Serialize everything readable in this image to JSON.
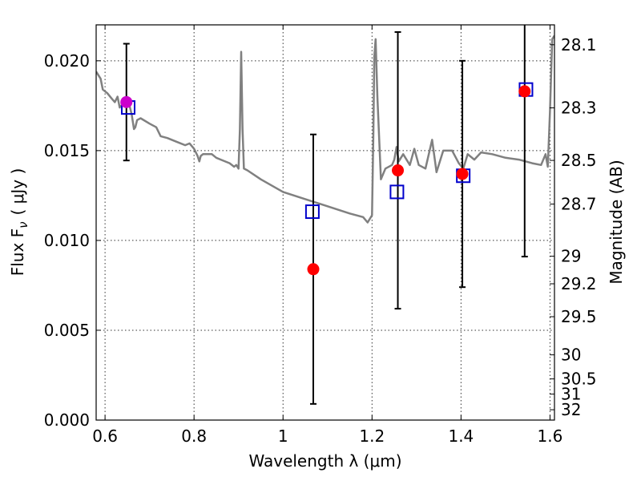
{
  "chart_data": {
    "type": "scatter",
    "xlabel": "Wavelength  λ (μm)",
    "ylabel": "Flux  F",
    "ylabel_sub": "ν",
    "ylabel_unit": "( μJy )",
    "y2label": "Magnitude (AB)",
    "xlim": [
      0.58,
      1.61
    ],
    "ylim": [
      0.0,
      0.022
    ],
    "grid": true,
    "x_ticks": [
      {
        "v": 0.6,
        "label": "0.6"
      },
      {
        "v": 0.8,
        "label": "0.8"
      },
      {
        "v": 1.0,
        "label": "1"
      },
      {
        "v": 1.2,
        "label": "1.2"
      },
      {
        "v": 1.4,
        "label": "1.4"
      },
      {
        "v": 1.6,
        "label": "1.6"
      }
    ],
    "y_ticks": [
      {
        "v": 0.0,
        "label": "0.000"
      },
      {
        "v": 0.005,
        "label": "0.005"
      },
      {
        "v": 0.01,
        "label": "0.010"
      },
      {
        "v": 0.015,
        "label": "0.015"
      },
      {
        "v": 0.02,
        "label": "0.020"
      }
    ],
    "mag_ticks": [
      {
        "mag": 28.1,
        "label": "28.1"
      },
      {
        "mag": 28.3,
        "label": "28.3"
      },
      {
        "mag": 28.5,
        "label": "28.5"
      },
      {
        "mag": 28.7,
        "label": "28.7"
      },
      {
        "mag": 29.0,
        "label": "29"
      },
      {
        "mag": 29.2,
        "label": "29.2"
      },
      {
        "mag": 29.5,
        "label": "29.5"
      },
      {
        "mag": 30.0,
        "label": "30"
      },
      {
        "mag": 30.5,
        "label": "30.5"
      },
      {
        "mag": 31.0,
        "label": "31"
      },
      {
        "mag": 32.0,
        "label": "32"
      }
    ],
    "observed": [
      {
        "x": 0.648,
        "y": 0.0177,
        "err": 0.00325,
        "color": "#cc00cc"
      },
      {
        "x": 1.068,
        "y": 0.0084,
        "err": 0.0075,
        "color": "#ff0000"
      },
      {
        "x": 1.258,
        "y": 0.0139,
        "err": 0.0077,
        "color": "#ff0000"
      },
      {
        "x": 1.403,
        "y": 0.0137,
        "err": 0.0063,
        "color": "#ff0000"
      },
      {
        "x": 1.543,
        "y": 0.0183,
        "err": 0.0092,
        "color": "#ff0000"
      }
    ],
    "model_points": [
      {
        "x": 0.652,
        "y": 0.0174
      },
      {
        "x": 1.066,
        "y": 0.0116
      },
      {
        "x": 1.256,
        "y": 0.0127
      },
      {
        "x": 1.405,
        "y": 0.0136
      },
      {
        "x": 1.546,
        "y": 0.0184
      }
    ],
    "sed_curve": [
      [
        0.58,
        0.0194
      ],
      [
        0.59,
        0.019
      ],
      [
        0.595,
        0.0184
      ],
      [
        0.605,
        0.0182
      ],
      [
        0.615,
        0.0179
      ],
      [
        0.622,
        0.0177
      ],
      [
        0.628,
        0.018
      ],
      [
        0.633,
        0.0174
      ],
      [
        0.64,
        0.0176
      ],
      [
        0.648,
        0.0176
      ],
      [
        0.655,
        0.0175
      ],
      [
        0.66,
        0.017
      ],
      [
        0.665,
        0.0162
      ],
      [
        0.668,
        0.0163
      ],
      [
        0.672,
        0.0167
      ],
      [
        0.68,
        0.0168
      ],
      [
        0.7,
        0.0165
      ],
      [
        0.715,
        0.0163
      ],
      [
        0.725,
        0.0158
      ],
      [
        0.74,
        0.0157
      ],
      [
        0.76,
        0.0155
      ],
      [
        0.78,
        0.0153
      ],
      [
        0.79,
        0.0154
      ],
      [
        0.8,
        0.0151
      ],
      [
        0.808,
        0.0147
      ],
      [
        0.812,
        0.0144
      ],
      [
        0.815,
        0.0147
      ],
      [
        0.82,
        0.0148
      ],
      [
        0.84,
        0.0148
      ],
      [
        0.85,
        0.0146
      ],
      [
        0.86,
        0.0145
      ],
      [
        0.88,
        0.0143
      ],
      [
        0.89,
        0.0141
      ],
      [
        0.895,
        0.0142
      ],
      [
        0.9,
        0.014
      ],
      [
        0.903,
        0.0162
      ],
      [
        0.906,
        0.0205
      ],
      [
        0.909,
        0.0162
      ],
      [
        0.912,
        0.014
      ],
      [
        0.92,
        0.0139
      ],
      [
        0.95,
        0.0134
      ],
      [
        1.0,
        0.0127
      ],
      [
        1.05,
        0.0123
      ],
      [
        1.1,
        0.0119
      ],
      [
        1.15,
        0.0115
      ],
      [
        1.18,
        0.0113
      ],
      [
        1.19,
        0.011
      ],
      [
        1.2,
        0.0114
      ],
      [
        1.203,
        0.016
      ],
      [
        1.205,
        0.0202
      ],
      [
        1.208,
        0.0212
      ],
      [
        1.212,
        0.018
      ],
      [
        1.22,
        0.0134
      ],
      [
        1.23,
        0.014
      ],
      [
        1.245,
        0.0142
      ],
      [
        1.25,
        0.0145
      ],
      [
        1.255,
        0.0152
      ],
      [
        1.26,
        0.0144
      ],
      [
        1.27,
        0.0148
      ],
      [
        1.285,
        0.0142
      ],
      [
        1.295,
        0.0151
      ],
      [
        1.305,
        0.0142
      ],
      [
        1.32,
        0.014
      ],
      [
        1.335,
        0.0156
      ],
      [
        1.345,
        0.0138
      ],
      [
        1.36,
        0.015
      ],
      [
        1.38,
        0.015
      ],
      [
        1.395,
        0.0143
      ],
      [
        1.405,
        0.014
      ],
      [
        1.415,
        0.0148
      ],
      [
        1.43,
        0.0145
      ],
      [
        1.445,
        0.0149
      ],
      [
        1.47,
        0.0148
      ],
      [
        1.5,
        0.0146
      ],
      [
        1.53,
        0.0145
      ],
      [
        1.56,
        0.0143
      ],
      [
        1.58,
        0.0142
      ],
      [
        1.59,
        0.0148
      ],
      [
        1.595,
        0.0141
      ],
      [
        1.6,
        0.0172
      ],
      [
        1.605,
        0.0212
      ],
      [
        1.61,
        0.0214
      ]
    ],
    "colors": {
      "curve": "#808080",
      "model_marker": "#0000cc",
      "errorbar": "#000000"
    }
  }
}
